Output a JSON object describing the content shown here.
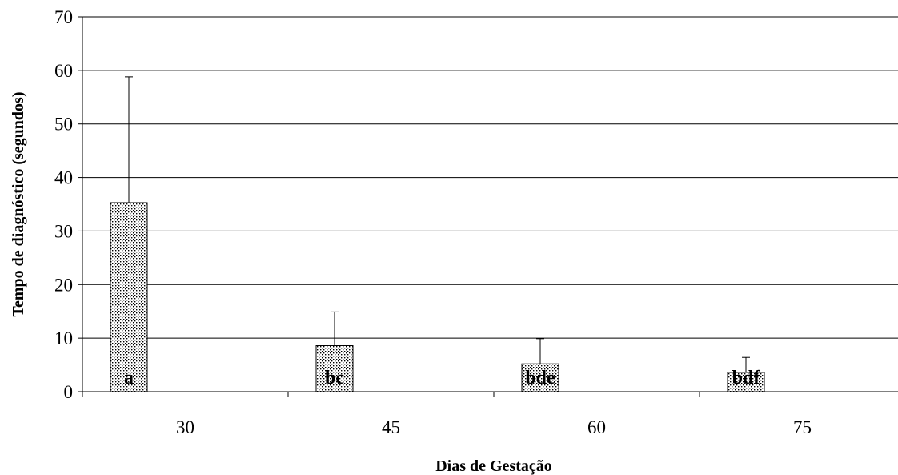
{
  "chart_data": {
    "type": "bar",
    "title": "",
    "xlabel": "Dias de Gestação",
    "ylabel": "Tempo de diagnóstico (segundos)",
    "categories": [
      "30",
      "45",
      "60",
      "75"
    ],
    "values": [
      35.3,
      8.6,
      5.2,
      3.6
    ],
    "error_upper": [
      58.8,
      14.9,
      9.9,
      6.4
    ],
    "bar_labels": [
      "a",
      "bc",
      "bde",
      "bdf"
    ],
    "ylim": [
      0,
      70
    ],
    "yticks": [
      0,
      10,
      20,
      30,
      40,
      50,
      60,
      70
    ],
    "grid": true,
    "legend": "none",
    "colors": {
      "bar_fill": "#ffffff",
      "bar_pattern": "#000000",
      "axis": "#000000",
      "grid": "#000000"
    }
  }
}
